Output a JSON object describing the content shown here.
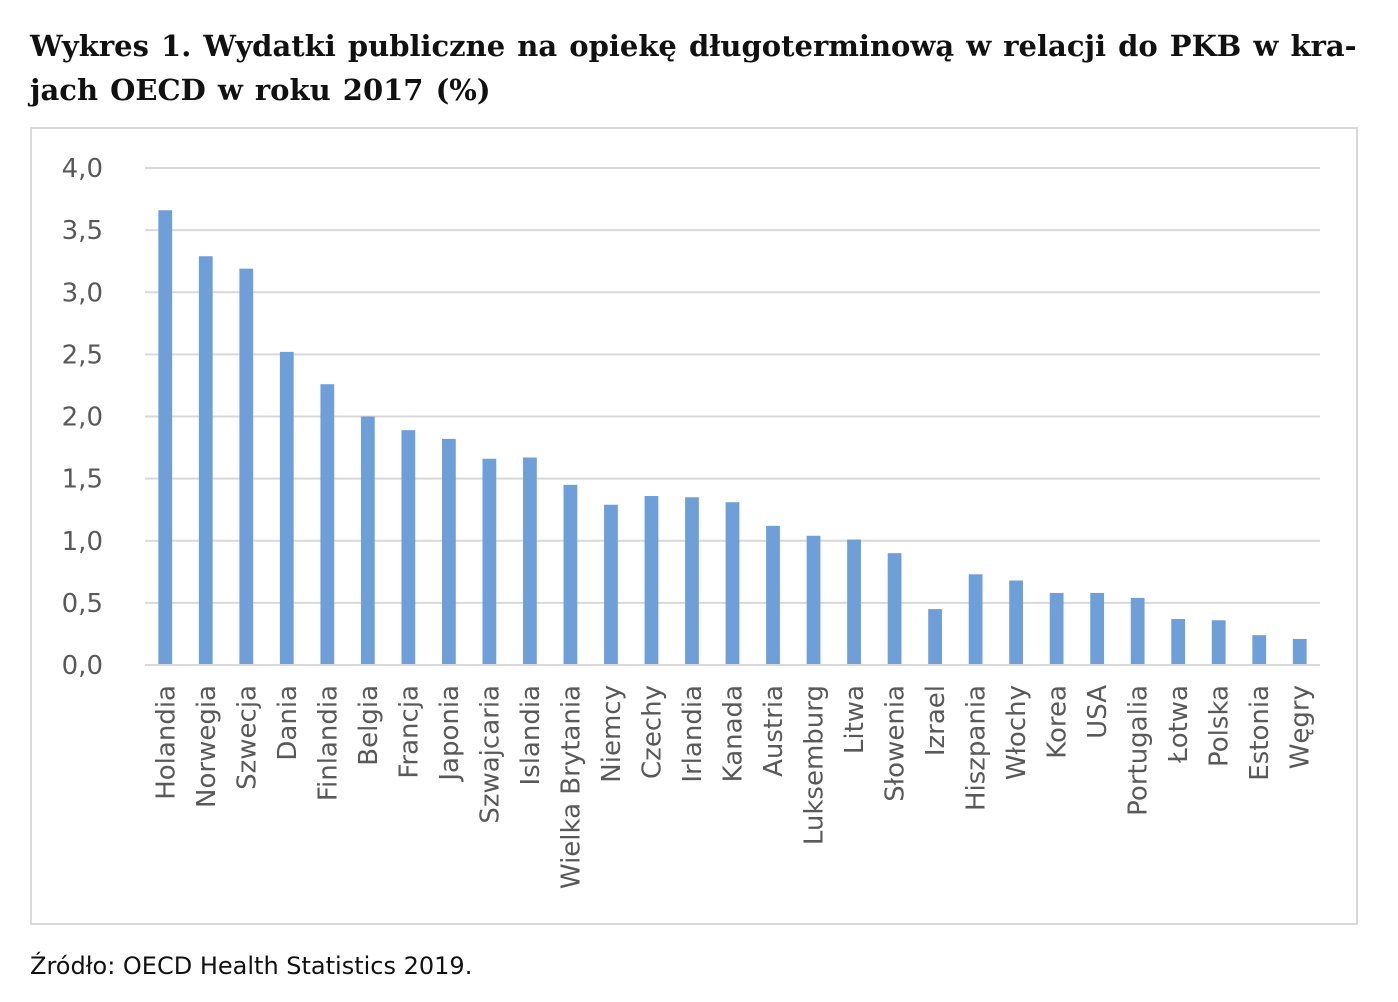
{
  "title": "Wykres 1. Wydatki publiczne na opiekę długoterminową w relacji do PKB w kra-jach OECD w roku 2017 (%)",
  "source": "Źródło: OECD Health Statistics 2019.",
  "colors": {
    "bar": "#6f9fd8",
    "grid": "#d9d9d9",
    "axis": "#d9d9d9",
    "text": "#595959"
  },
  "chart_data": {
    "type": "bar",
    "title": "Wydatki publiczne na opiekę długoterminową w relacji do PKB w krajach OECD w roku 2017 (%)",
    "xlabel": "",
    "ylabel": "",
    "ylim": [
      0,
      4
    ],
    "yticks": [
      0,
      0.5,
      1,
      1.5,
      2,
      2.5,
      3,
      3.5,
      4
    ],
    "ytick_labels": [
      "0,0",
      "0,5",
      "1,0",
      "1,5",
      "2,0",
      "2,5",
      "3,0",
      "3,5",
      "4,0"
    ],
    "grid": true,
    "legend": "none",
    "categories": [
      "Holandia",
      "Norwegia",
      "Szwecja",
      "Dania",
      "Finlandia",
      "Belgia",
      "Francja",
      "Japonia",
      "Szwajcaria",
      "Islandia",
      "Wielka Brytania",
      "Niemcy",
      "Czechy",
      "Irlandia",
      "Kanada",
      "Austria",
      "Luksemburg",
      "Litwa",
      "Słowenia",
      "Izrael",
      "Hiszpania",
      "Włochy",
      "Korea",
      "USA",
      "Portugalia",
      "Łotwa",
      "Polska",
      "Estonia",
      "Węgry"
    ],
    "values": [
      3.66,
      3.29,
      3.19,
      2.52,
      2.26,
      2.0,
      1.89,
      1.82,
      1.66,
      1.67,
      1.45,
      1.29,
      1.36,
      1.35,
      1.31,
      1.12,
      1.04,
      1.01,
      0.9,
      0.45,
      0.73,
      0.68,
      0.58,
      0.58,
      0.54,
      0.37,
      0.36,
      0.24,
      0.21
    ]
  }
}
